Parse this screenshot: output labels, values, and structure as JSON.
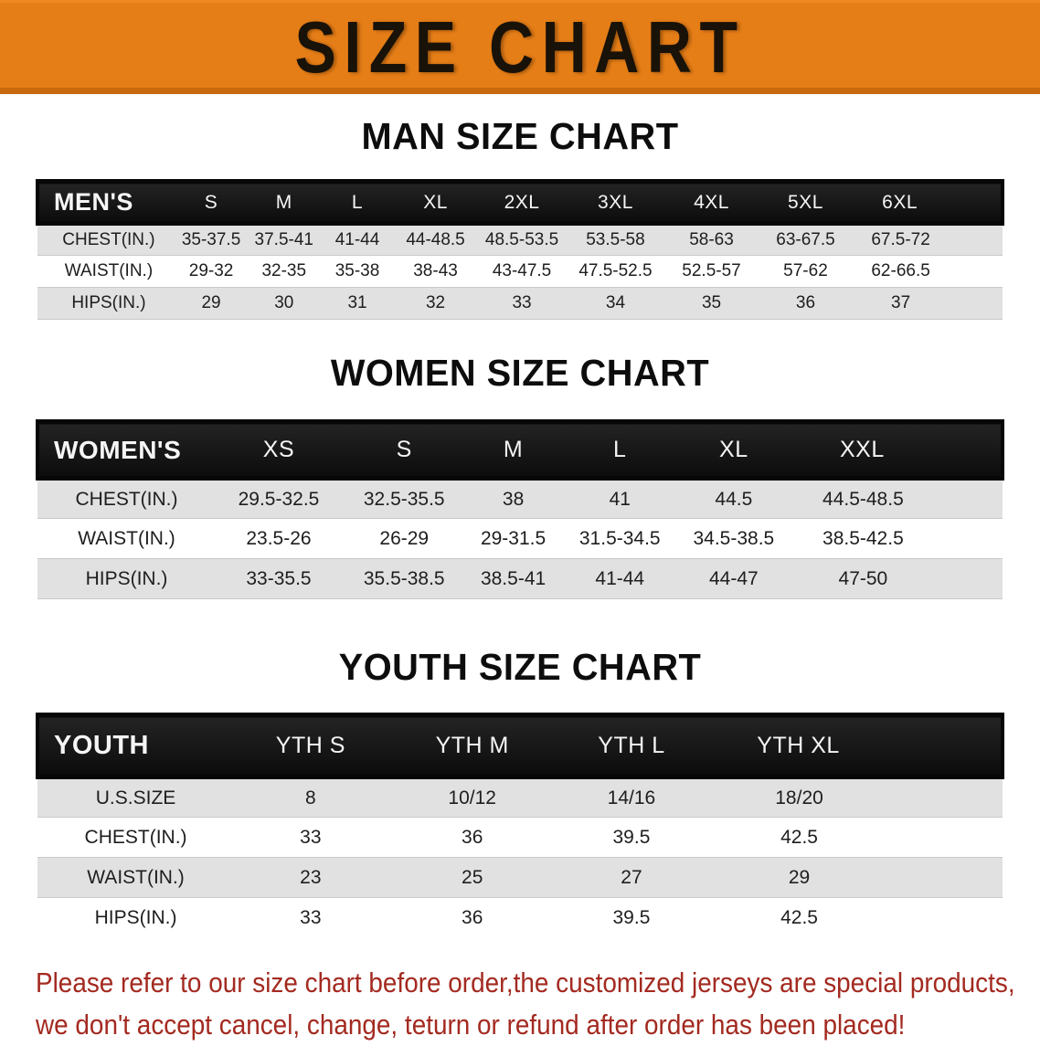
{
  "banner": {
    "title": "SIZE CHART"
  },
  "sections": [
    {
      "heading": "MAN SIZE CHART",
      "label": "MEN'S",
      "columns": [
        "S",
        "M",
        "L",
        "XL",
        "2XL",
        "3XL",
        "4XL",
        "5XL",
        "6XL"
      ],
      "rows": [
        {
          "label": "CHEST(IN.)",
          "values": [
            "35-37.5",
            "37.5-41",
            "41-44",
            "44-48.5",
            "48.5-53.5",
            "53.5-58",
            "58-63",
            "63-67.5",
            "67.5-72"
          ]
        },
        {
          "label": "WAIST(IN.)",
          "values": [
            "29-32",
            "32-35",
            "35-38",
            "38-43",
            "43-47.5",
            "47.5-52.5",
            "52.5-57",
            "57-62",
            "62-66.5"
          ]
        },
        {
          "label": "HIPS(IN.)",
          "values": [
            "29",
            "30",
            "31",
            "32",
            "33",
            "34",
            "35",
            "36",
            "37"
          ]
        }
      ]
    },
    {
      "heading": "WOMEN SIZE CHART",
      "label": "WOMEN'S",
      "columns": [
        "XS",
        "S",
        "M",
        "L",
        "XL",
        "XXL"
      ],
      "rows": [
        {
          "label": "CHEST(IN.)",
          "values": [
            "29.5-32.5",
            "32.5-35.5",
            "38",
            "41",
            "44.5",
            "44.5-48.5"
          ]
        },
        {
          "label": "WAIST(IN.)",
          "values": [
            "23.5-26",
            "26-29",
            "29-31.5",
            "31.5-34.5",
            "34.5-38.5",
            "38.5-42.5"
          ]
        },
        {
          "label": "HIPS(IN.)",
          "values": [
            "33-35.5",
            "35.5-38.5",
            "38.5-41",
            "41-44",
            "44-47",
            "47-50"
          ]
        }
      ]
    },
    {
      "heading": "YOUTH SIZE CHART",
      "label": "YOUTH",
      "columns": [
        "YTH S",
        "YTH M",
        "YTH L",
        "YTH XL"
      ],
      "rows": [
        {
          "label": "U.S.SIZE",
          "values": [
            "8",
            "10/12",
            "14/16",
            "18/20"
          ]
        },
        {
          "label": "CHEST(IN.)",
          "values": [
            "33",
            "36",
            "39.5",
            "42.5"
          ]
        },
        {
          "label": "WAIST(IN.)",
          "values": [
            "23",
            "25",
            "27",
            "29"
          ]
        },
        {
          "label": "HIPS(IN.)",
          "values": [
            "33",
            "36",
            "39.5",
            "42.5"
          ]
        }
      ]
    }
  ],
  "footer": {
    "line1": "Please refer to our size chart before order,the customized jerseys are special products,",
    "line2": "we don't accept cancel, change, teturn or refund after order has been placed!"
  },
  "colors": {
    "banner_bg": "#E67E17",
    "banner_edge": "#C8690E",
    "header_bar": "#141414",
    "stripe_gray": "#E1E1E1",
    "notice_red": "#A32A20"
  }
}
